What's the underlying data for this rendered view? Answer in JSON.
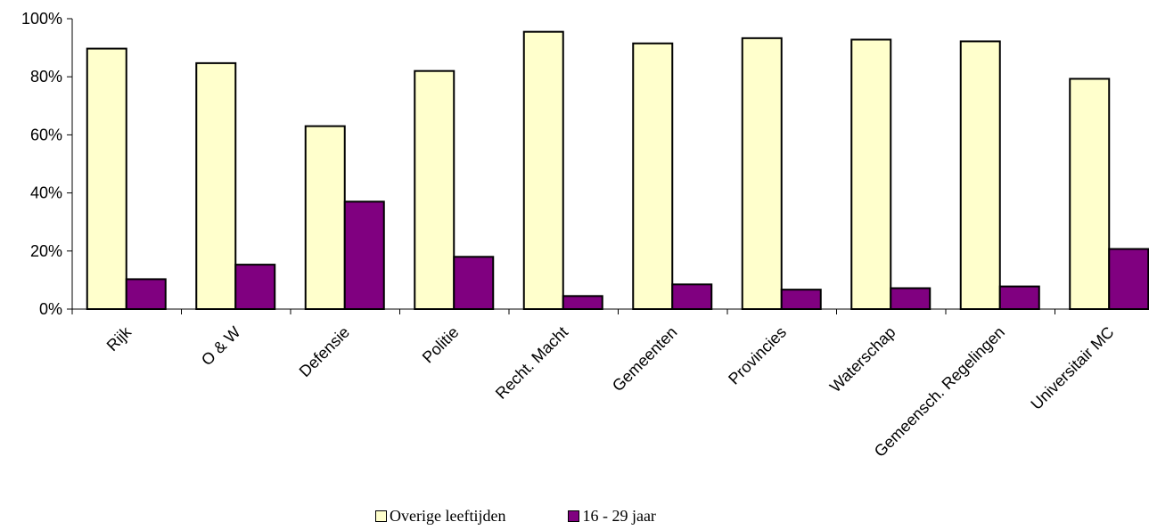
{
  "chart_data": {
    "type": "bar",
    "categories": [
      "Rijk",
      "O & W",
      "Defensie",
      "Politie",
      "Recht. Macht",
      "Gemeenten",
      "Provincies",
      "Waterschap",
      "Gemeensch. Regelingen",
      "Universitair MC"
    ],
    "series": [
      {
        "name": "Overige leeftijden",
        "color": "#FFFFCC",
        "values": [
          89.7,
          84.7,
          63.0,
          82.0,
          95.5,
          91.5,
          93.3,
          92.8,
          92.2,
          79.3
        ]
      },
      {
        "name": "16 - 29 jaar",
        "color": "#800080",
        "values": [
          10.3,
          15.3,
          37.0,
          18.0,
          4.5,
          8.5,
          6.7,
          7.2,
          7.8,
          20.7
        ]
      }
    ],
    "y_ticks": [
      "0%",
      "20%",
      "40%",
      "60%",
      "80%",
      "100%"
    ],
    "ylim": [
      0,
      100
    ],
    "grid": false,
    "legend_position": "bottom"
  }
}
